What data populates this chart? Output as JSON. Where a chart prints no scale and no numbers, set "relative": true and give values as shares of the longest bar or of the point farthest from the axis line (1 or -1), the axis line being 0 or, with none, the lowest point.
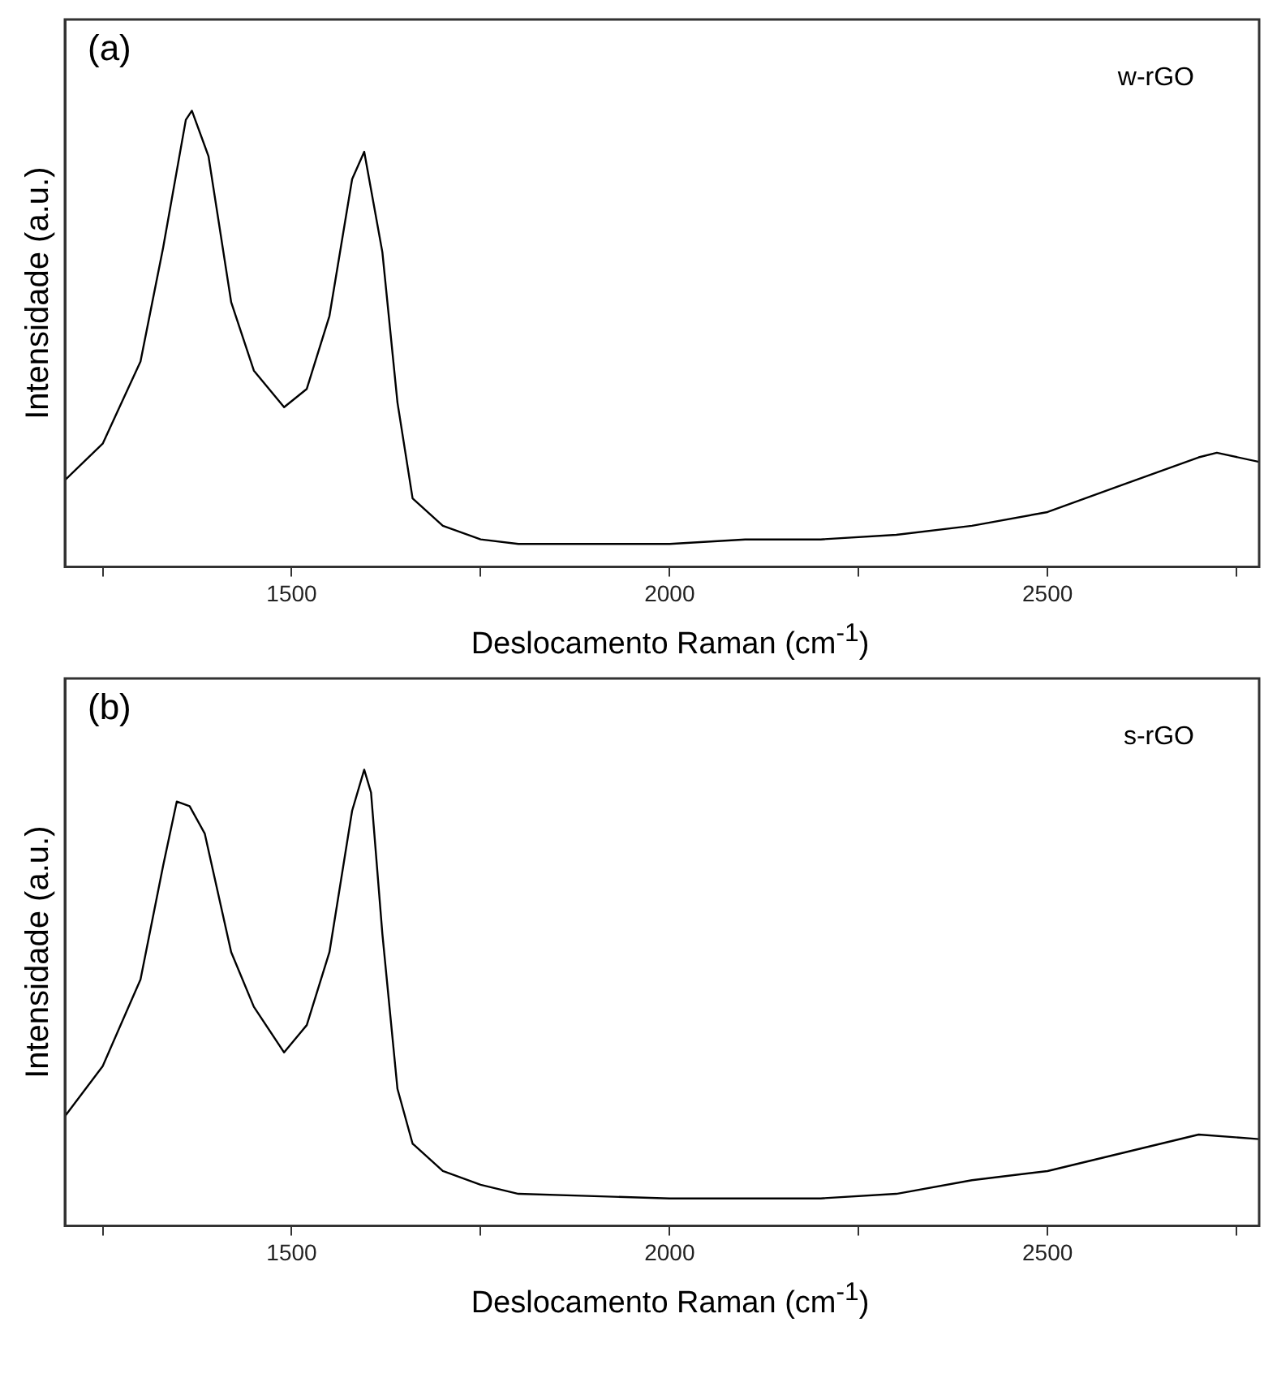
{
  "chart_data": [
    {
      "type": "line",
      "annotations": [
        "(a)"
      ],
      "xlabel": "Deslocamento Raman (cm$^{-1}$)",
      "ylabel": "Intensidade (a.u.)",
      "relative": true,
      "xlim": [
        1200,
        2780
      ],
      "xticks": [
        {
          "value": 1250,
          "label": null
        },
        1500,
        {
          "value": 1750,
          "label": null
        },
        2000,
        {
          "value": 2250,
          "label": null
        },
        2500,
        {
          "value": 2750,
          "label": null
        }
      ],
      "grid": false,
      "legend": false,
      "marker": "none",
      "line_style": "solid",
      "series": [
        {
          "name": "w-rGO",
          "color": "#000000",
          "x": [
            1200,
            1250,
            1300,
            1330,
            1360,
            1368,
            1390,
            1420,
            1450,
            1490,
            1520,
            1550,
            1580,
            1596,
            1620,
            1640,
            1660,
            1700,
            1750,
            1800,
            1900,
            2000,
            2100,
            2200,
            2300,
            2400,
            2500,
            2600,
            2700,
            2724,
            2780
          ],
          "values": [
            0.19,
            0.27,
            0.45,
            0.7,
            0.98,
            1,
            0.9,
            0.58,
            0.43,
            0.35,
            0.39,
            0.55,
            0.85,
            0.91,
            0.69,
            0.36,
            0.15,
            0.09,
            0.06,
            0.05,
            0.05,
            0.05,
            0.06,
            0.06,
            0.07,
            0.09,
            0.12,
            0.18,
            0.24,
            0.25,
            0.23
          ]
        }
      ]
    },
    {
      "type": "line",
      "annotations": [
        "(b)"
      ],
      "xlabel": "Deslocamento Raman (cm$^{-1}$)",
      "ylabel": "Intensidade (a.u.)",
      "relative": true,
      "xlim": [
        1200,
        2780
      ],
      "xticks": [
        {
          "value": 1250,
          "label": null
        },
        1500,
        {
          "value": 1750,
          "label": null
        },
        2000,
        {
          "value": 2250,
          "label": null
        },
        2500,
        {
          "value": 2750,
          "label": null
        }
      ],
      "grid": false,
      "legend": false,
      "marker": "none",
      "line_style": "solid",
      "series": [
        {
          "name": "s-rGO",
          "color": "#000000",
          "x": [
            1200,
            1250,
            1300,
            1330,
            1348,
            1365,
            1385,
            1420,
            1450,
            1490,
            1520,
            1550,
            1580,
            1596,
            1605,
            1620,
            1640,
            1660,
            1700,
            1750,
            1800,
            1900,
            2000,
            2100,
            2200,
            2300,
            2400,
            2500,
            2600,
            2700,
            2780
          ],
          "values": [
            0.24,
            0.35,
            0.54,
            0.79,
            0.93,
            0.92,
            0.86,
            0.6,
            0.48,
            0.38,
            0.44,
            0.6,
            0.91,
            1,
            0.95,
            0.64,
            0.3,
            0.18,
            0.12,
            0.09,
            0.07,
            0.065,
            0.06,
            0.06,
            0.06,
            0.07,
            0.1,
            0.12,
            0.16,
            0.2,
            0.19
          ]
        }
      ]
    }
  ]
}
